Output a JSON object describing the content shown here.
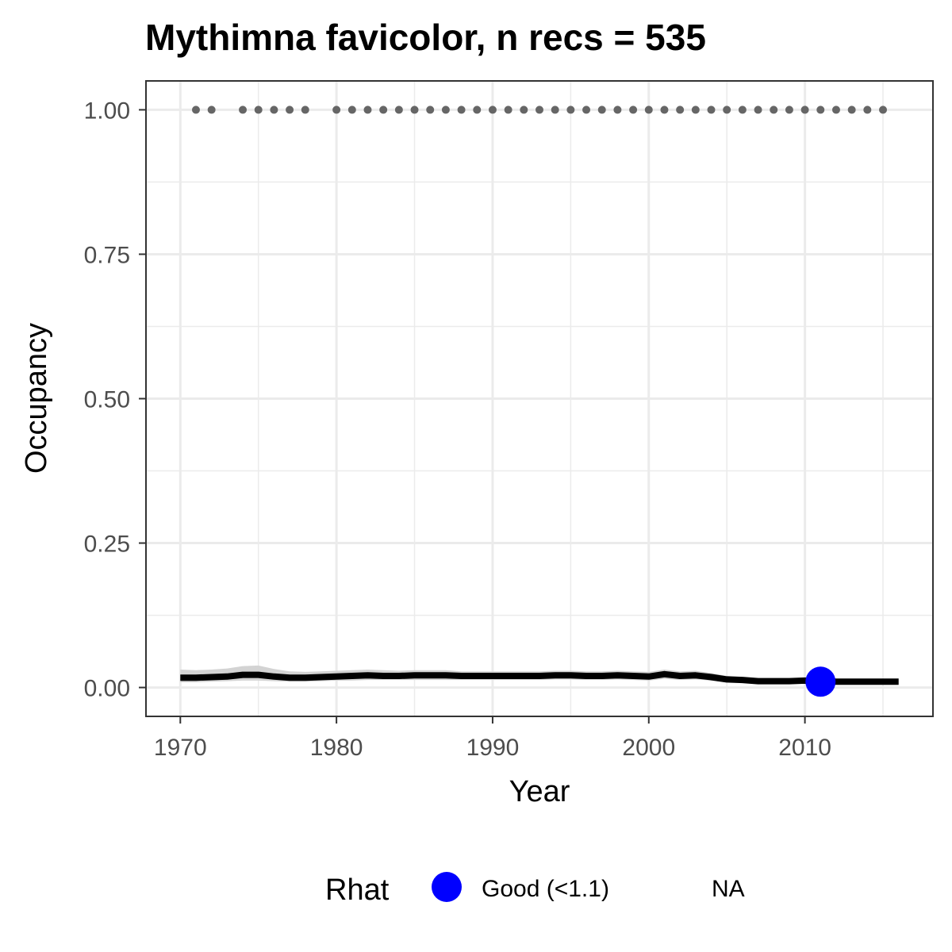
{
  "chart_data": {
    "type": "line",
    "title": "Mythimna favicolor, n recs = 535",
    "xlabel": "Year",
    "ylabel": "Occupancy",
    "xlim": [
      1967.8,
      2018.2
    ],
    "ylim": [
      -0.05,
      1.05
    ],
    "x_ticks": [
      1970,
      1980,
      1990,
      2000,
      2010
    ],
    "x_tick_labels": [
      "1970",
      "1980",
      "1990",
      "2000",
      "2010"
    ],
    "y_ticks": [
      0.0,
      0.25,
      0.5,
      0.75,
      1.0
    ],
    "y_tick_labels": [
      "0.00",
      "0.25",
      "0.50",
      "0.75",
      "1.00"
    ],
    "grid": true,
    "colors": {
      "line": "#000000",
      "ribbon": "#d3d3d3",
      "record_points": "#666666",
      "rhat_good": "#0000ff",
      "grid": "#ebebeb",
      "panel_border": "#333333"
    },
    "occupancy_series": {
      "x": [
        1970,
        1971,
        1972,
        1973,
        1974,
        1975,
        1976,
        1977,
        1978,
        1979,
        1980,
        1981,
        1982,
        1983,
        1984,
        1985,
        1986,
        1987,
        1988,
        1989,
        1990,
        1991,
        1992,
        1993,
        1994,
        1995,
        1996,
        1997,
        1998,
        1999,
        2000,
        2001,
        2002,
        2003,
        2004,
        2005,
        2006,
        2007,
        2008,
        2009,
        2010,
        2011,
        2012,
        2013,
        2014,
        2015,
        2016
      ],
      "y": [
        0.017,
        0.017,
        0.018,
        0.019,
        0.022,
        0.022,
        0.019,
        0.017,
        0.017,
        0.018,
        0.019,
        0.02,
        0.021,
        0.02,
        0.02,
        0.021,
        0.021,
        0.021,
        0.02,
        0.02,
        0.02,
        0.02,
        0.02,
        0.02,
        0.021,
        0.021,
        0.02,
        0.02,
        0.021,
        0.02,
        0.019,
        0.023,
        0.02,
        0.021,
        0.018,
        0.014,
        0.013,
        0.011,
        0.011,
        0.011,
        0.012,
        0.011,
        0.01,
        0.01,
        0.01,
        0.01,
        0.01
      ],
      "lower": [
        0.009,
        0.009,
        0.01,
        0.011,
        0.012,
        0.012,
        0.011,
        0.01,
        0.01,
        0.011,
        0.012,
        0.012,
        0.013,
        0.013,
        0.013,
        0.013,
        0.013,
        0.013,
        0.013,
        0.013,
        0.013,
        0.013,
        0.013,
        0.013,
        0.014,
        0.014,
        0.013,
        0.013,
        0.014,
        0.013,
        0.012,
        0.015,
        0.013,
        0.014,
        0.012,
        0.009,
        0.008,
        0.007,
        0.007,
        0.007,
        0.008,
        0.007,
        0.006,
        0.006,
        0.006,
        0.006,
        0.006
      ],
      "upper": [
        0.031,
        0.03,
        0.031,
        0.033,
        0.037,
        0.038,
        0.032,
        0.028,
        0.027,
        0.028,
        0.029,
        0.03,
        0.031,
        0.03,
        0.029,
        0.03,
        0.03,
        0.03,
        0.028,
        0.028,
        0.028,
        0.028,
        0.028,
        0.028,
        0.029,
        0.029,
        0.028,
        0.028,
        0.029,
        0.028,
        0.027,
        0.031,
        0.028,
        0.029,
        0.025,
        0.02,
        0.018,
        0.016,
        0.016,
        0.016,
        0.017,
        0.016,
        0.015,
        0.015,
        0.015,
        0.015,
        0.015
      ]
    },
    "record_years": {
      "x": [
        1971,
        1972,
        1974,
        1975,
        1976,
        1977,
        1978,
        1980,
        1981,
        1982,
        1983,
        1984,
        1985,
        1986,
        1987,
        1988,
        1989,
        1990,
        1991,
        1992,
        1993,
        1994,
        1995,
        1996,
        1997,
        1998,
        1999,
        2000,
        2001,
        2002,
        2003,
        2004,
        2005,
        2006,
        2007,
        2008,
        2009,
        2010,
        2011,
        2012,
        2013,
        2014,
        2015
      ],
      "y": 1.0
    },
    "rhat_points": [
      {
        "x": 2011,
        "y": 0.01,
        "category": "Good (<1.1)"
      }
    ],
    "legend": {
      "title": "Rhat",
      "position": "bottom",
      "entries": [
        {
          "label": "Good (<1.1)",
          "color": "#0000ff",
          "shape": "circle"
        },
        {
          "label": "NA",
          "color": "",
          "shape": "none"
        }
      ]
    }
  }
}
